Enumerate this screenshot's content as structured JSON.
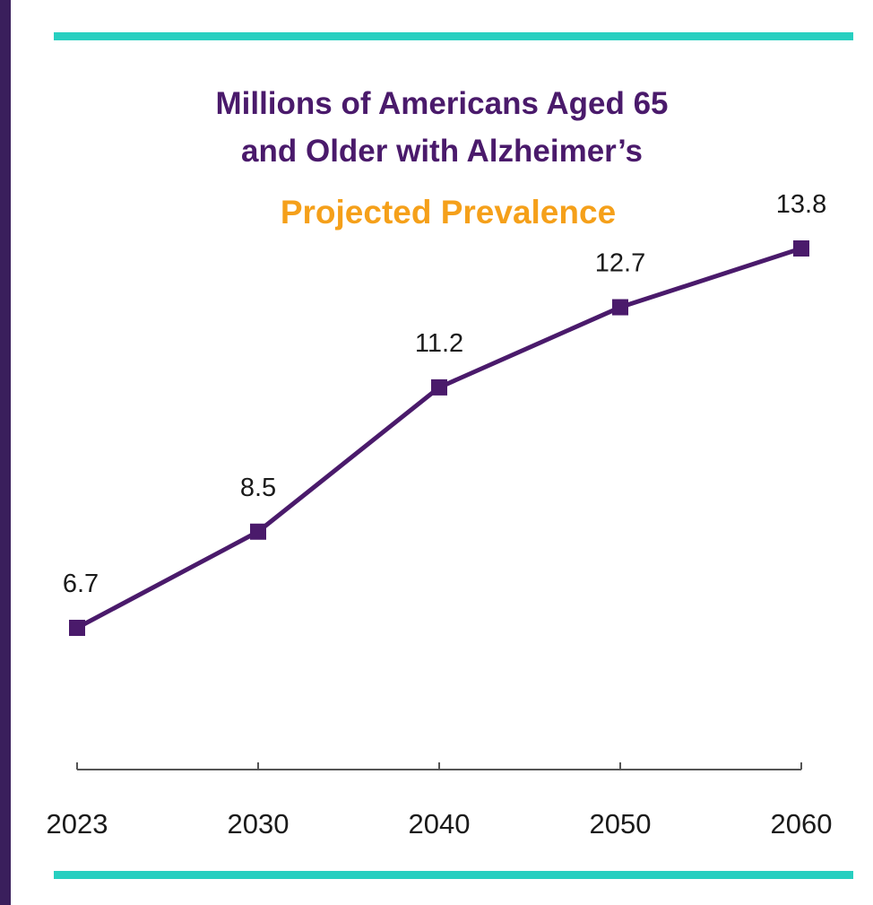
{
  "chart_data": {
    "type": "line",
    "title": "Millions of Americans Aged 65",
    "title_line2": "and Older with Alzheimer’s",
    "subtitle": "Projected Prevalence",
    "categories": [
      "2023",
      "2030",
      "2040",
      "2050",
      "2060"
    ],
    "values": [
      6.7,
      8.5,
      11.2,
      12.7,
      13.8
    ],
    "data_labels": [
      "6.7",
      "8.5",
      "11.2",
      "12.7",
      "13.8"
    ],
    "xlabel": "",
    "ylabel": "",
    "grid": false,
    "colors": {
      "line": "#4a1a6b",
      "title": "#4a1a6b",
      "subtitle": "#f5a01a",
      "rule": "#27cfc0",
      "border": "#3a1f5c"
    }
  }
}
